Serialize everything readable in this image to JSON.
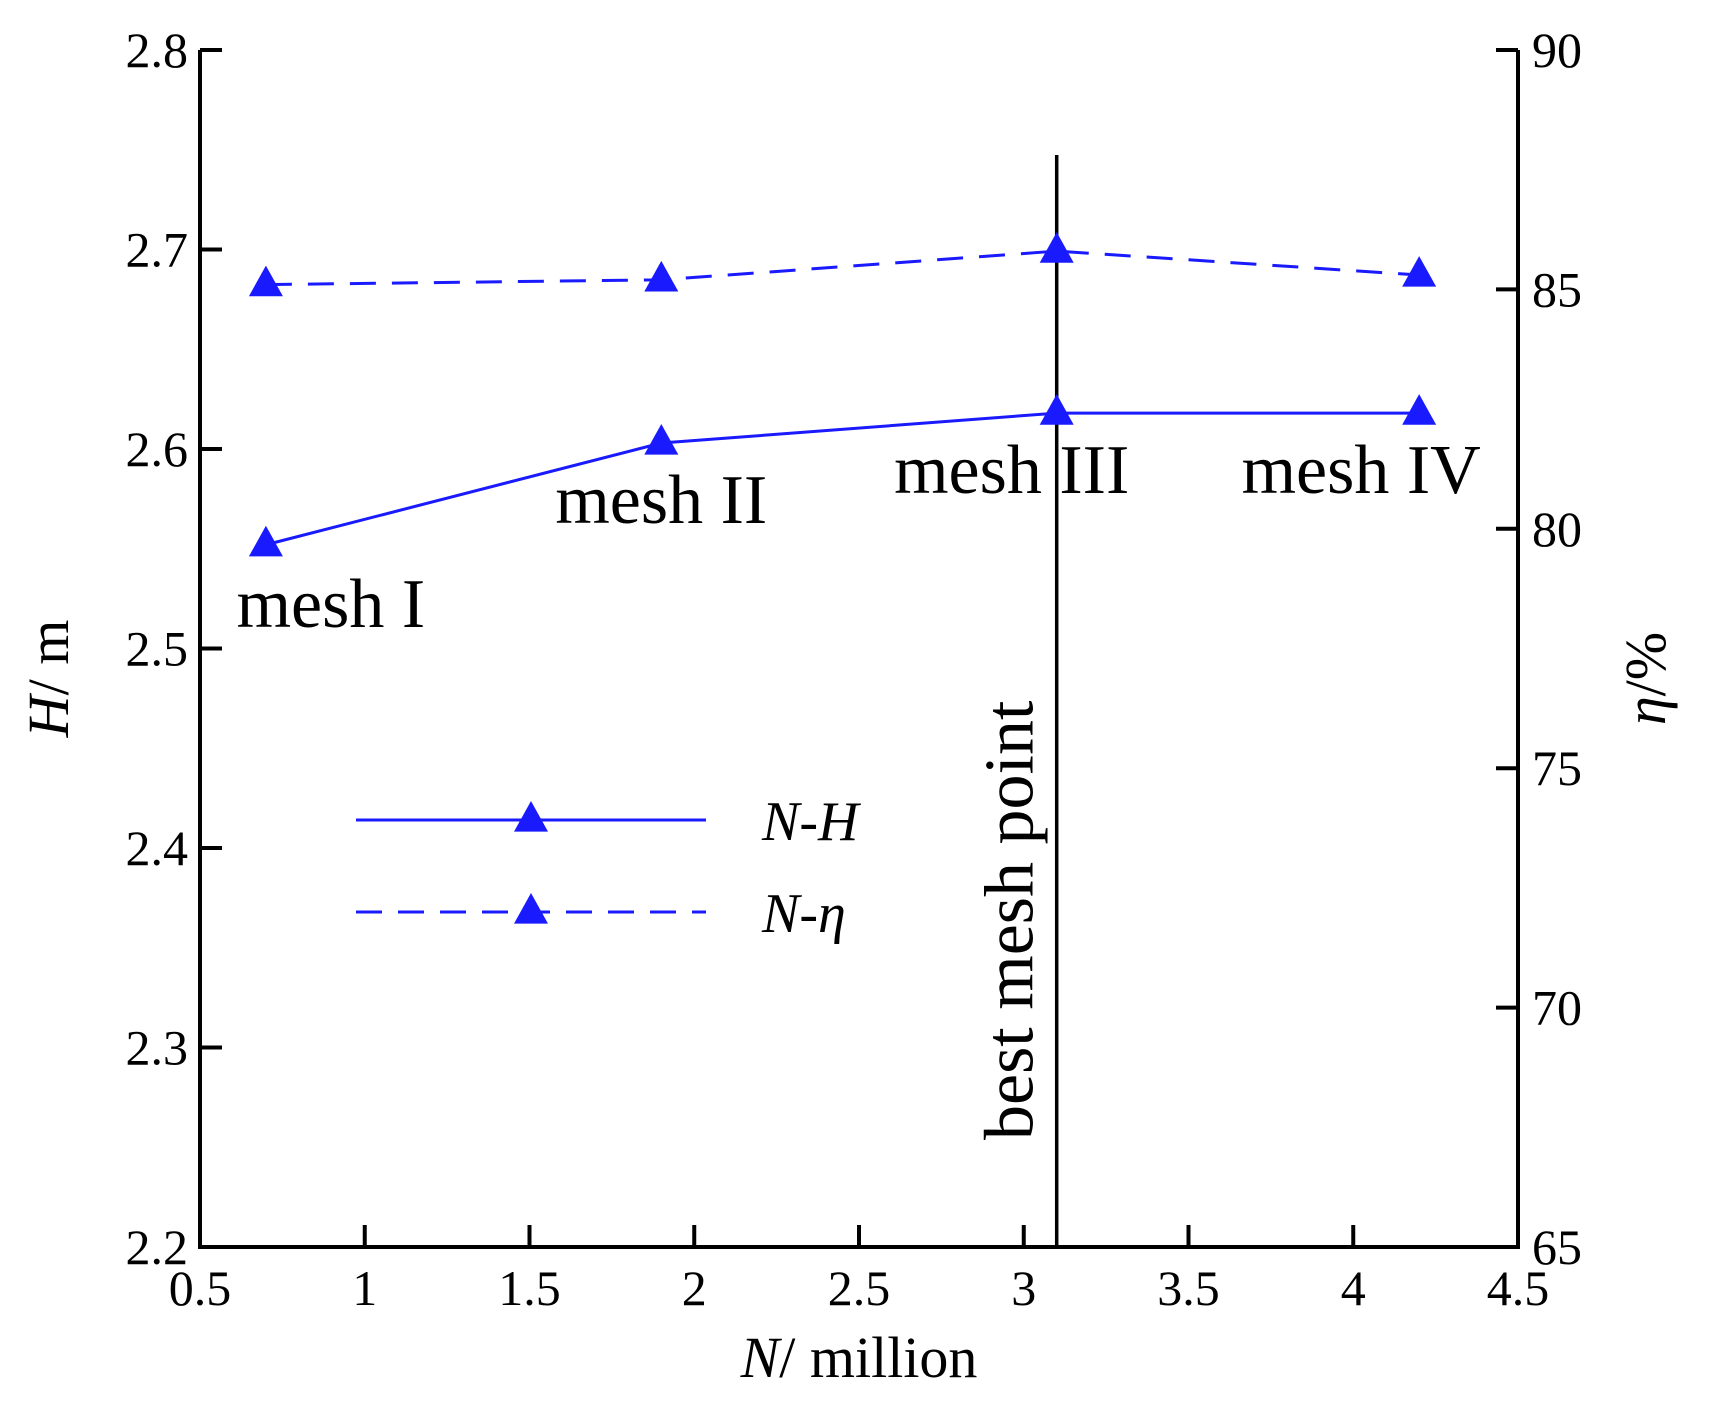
{
  "chart_data": {
    "type": "line",
    "xlabel_var": "N",
    "xlabel_unit": "/ million",
    "ylabel_var": "H",
    "ylabel_unit": "/ m",
    "y2label_var": "η",
    "y2label_unit": "/%",
    "xlim": [
      0.5,
      4.5
    ],
    "ylim": [
      2.2,
      2.8
    ],
    "y2lim": [
      65,
      90
    ],
    "xticks": [
      "0.5",
      "1",
      "1.5",
      "2",
      "2.5",
      "3",
      "3.5",
      "4",
      "4.5"
    ],
    "yticks": [
      "2.2",
      "2.3",
      "2.4",
      "2.5",
      "2.6",
      "2.7",
      "2.8"
    ],
    "y2ticks": [
      "65",
      "70",
      "75",
      "80",
      "85",
      "90"
    ],
    "x": [
      0.7,
      1.9,
      3.1,
      4.2
    ],
    "series": [
      {
        "name": "N-H",
        "axis": "left",
        "style": "solid",
        "values": [
          2.552,
          2.603,
          2.618,
          2.618
        ]
      },
      {
        "name": "N-η",
        "axis": "right",
        "style": "dashed",
        "values": [
          85.1,
          85.2,
          85.8,
          85.3
        ]
      }
    ],
    "series_color": "#1a1aff",
    "point_labels": [
      "mesh I",
      "mesh II",
      "mesh III",
      "mesh IV"
    ],
    "reference_line": {
      "x": 3.1,
      "label": "best mesh point"
    },
    "legend": {
      "entries": [
        {
          "prefix": "N",
          "sep": "-",
          "suffix": "H"
        },
        {
          "prefix": "N",
          "sep": "-",
          "suffix": "η"
        }
      ]
    }
  }
}
